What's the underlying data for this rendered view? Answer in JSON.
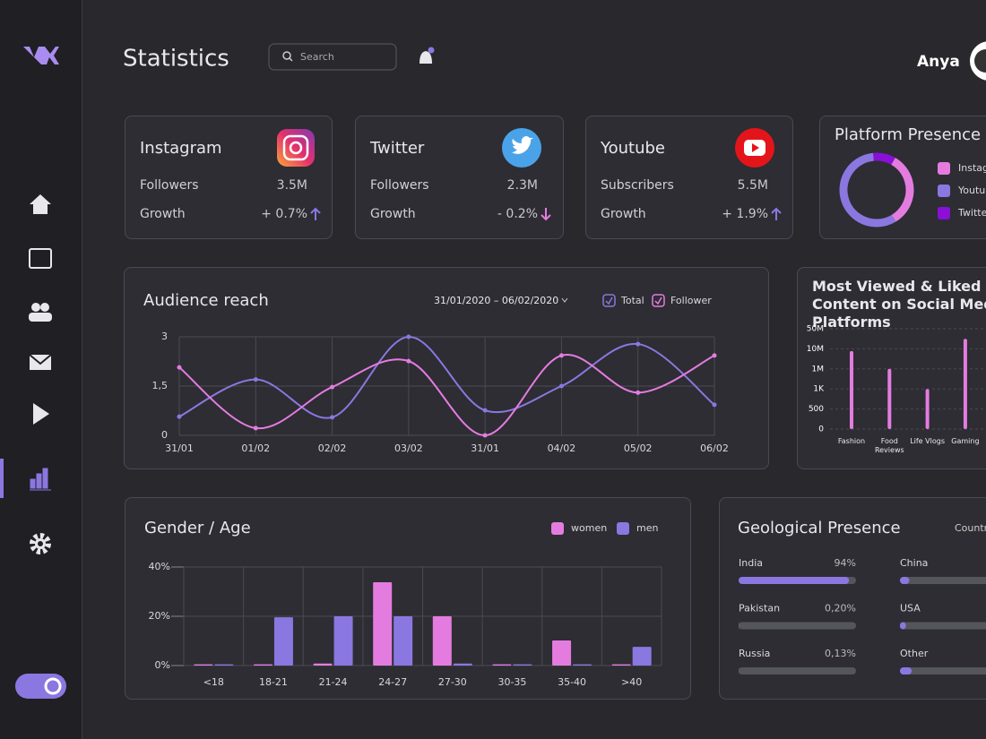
{
  "header": {
    "title": "Statistics",
    "search_placeholder": "Search",
    "user_name": "Anya"
  },
  "cards": [
    {
      "platform": "Instagram",
      "rows": [
        {
          "label": "Followers",
          "value": "3.5M"
        },
        {
          "label": "Growth",
          "value": "+ 0.7%",
          "trend": "up"
        }
      ]
    },
    {
      "platform": "Twitter",
      "rows": [
        {
          "label": "Followers",
          "value": "2.3M"
        },
        {
          "label": "Growth",
          "value": "- 0.2%",
          "trend": "down"
        }
      ]
    },
    {
      "platform": "Youtube",
      "rows": [
        {
          "label": "Subscribers",
          "value": "5.5M"
        },
        {
          "label": "Growth",
          "value": "+ 1.9%",
          "trend": "up"
        }
      ]
    }
  ],
  "platform_presence": {
    "type": "donut",
    "title": "Platform Presence",
    "series": [
      {
        "name": "Instagram",
        "color": "#e47ce0",
        "value": 33
      },
      {
        "name": "Youtube",
        "color": "#8b77e0",
        "value": 57
      },
      {
        "name": "Twitter",
        "color": "#8a10d8",
        "value": 10
      }
    ]
  },
  "audience_reach": {
    "type": "line",
    "title": "Audience reach",
    "date_range": "31/01/2020 – 06/02/2020",
    "x": [
      "31/01",
      "01/02",
      "02/02",
      "03/02",
      "31/01",
      "04/02",
      "05/02",
      "06/02"
    ],
    "ylim": [
      0,
      3
    ],
    "yticks": [
      0,
      {
        "value": 1.5,
        "label": "1,5"
      },
      3
    ],
    "grid": true,
    "series": [
      {
        "name": "Total",
        "color": "#8b77e0",
        "values": [
          0.57,
          1.7,
          0.55,
          3.0,
          0.76,
          1.5,
          2.78,
          0.93
        ]
      },
      {
        "name": "Follower",
        "color": "#e47ce0",
        "values": [
          2.07,
          0.22,
          1.47,
          2.26,
          0,
          2.43,
          1.3,
          2.43
        ]
      }
    ]
  },
  "most_viewed": {
    "type": "bar",
    "title": "Most Viewed & Liked Content on Social Media Platforms",
    "categories": [
      "Fashion",
      "Food Reviews",
      "Life Vlogs",
      "Gaming"
    ],
    "color": "#e47ce0",
    "values": [
      9000000,
      1000000,
      1000,
      30000000
    ],
    "ylim": [
      0,
      50000000
    ],
    "scale": "tick-spaced",
    "yticks": [
      0,
      500,
      {
        "value": 1000,
        "label": "1K"
      },
      {
        "value": 1000000,
        "label": "1M"
      },
      {
        "value": 10000000,
        "label": "10M"
      },
      {
        "value": 50000000,
        "label": "50M"
      }
    ]
  },
  "gender_age": {
    "type": "bar",
    "title": "Gender / Age",
    "categories": [
      "<18",
      "18-21",
      "21-24",
      "24-27",
      "27-30",
      "30-35",
      "35-40",
      ">40"
    ],
    "ylim": [
      0,
      40
    ],
    "yticks": [
      {
        "value": 0,
        "label": "0%"
      },
      {
        "value": 20,
        "label": "20%"
      },
      {
        "value": 40,
        "label": "40%"
      }
    ],
    "grid": true,
    "series": [
      {
        "name": "women",
        "color": "#e47ce0",
        "values": [
          0.5,
          0.5,
          0.8,
          33.8,
          20,
          0.5,
          10.2,
          0.5
        ]
      },
      {
        "name": "men",
        "color": "#8b77e0",
        "values": [
          0.5,
          19.6,
          20,
          20,
          0.8,
          0.5,
          0.5,
          7.6
        ]
      }
    ]
  },
  "geo_presence": {
    "title": "Geological Presence",
    "filter": "Country",
    "xlim": [
      0,
      100
    ],
    "color": "#8b77e0",
    "countries": [
      {
        "name": "India",
        "value": 94,
        "value_label": "94%"
      },
      {
        "name": "Pakistan",
        "value": 0.2,
        "value_label": "0,20%"
      },
      {
        "name": "Russia",
        "value": 0.13,
        "value_label": "0,13%"
      },
      {
        "name": "China",
        "value": 8
      },
      {
        "name": "USA",
        "value": 5
      },
      {
        "name": "Other",
        "value": 10
      }
    ]
  }
}
